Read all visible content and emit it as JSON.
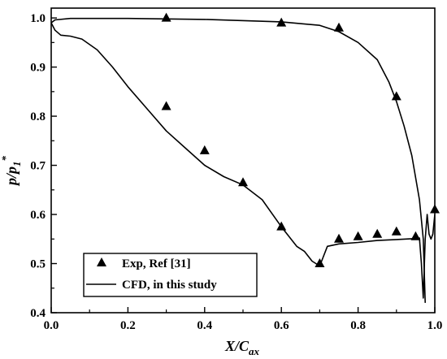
{
  "chart_data": {
    "type": "line",
    "xlabel": {
      "main": "X/C",
      "sub": "ax"
    },
    "ylabel": {
      "main": "p/p",
      "sub": "1",
      "sup": "*"
    },
    "xlim": [
      0.0,
      1.0
    ],
    "ylim": [
      0.4,
      1.02
    ],
    "xticks": [
      "0.0",
      "0.2",
      "0.4",
      "0.6",
      "0.8",
      "1.0"
    ],
    "yticks": [
      "0.4",
      "0.5",
      "0.6",
      "0.7",
      "0.8",
      "0.9",
      "1.0"
    ],
    "grid": false,
    "legend": {
      "placement": "bottom-left",
      "entries": [
        {
          "label": "Exp, Ref [31]",
          "marker": "triangle"
        },
        {
          "label": "CFD, in this study",
          "marker": "line"
        }
      ]
    },
    "series": [
      {
        "kind": "scatter",
        "marker": "triangle",
        "points": [
          [
            0.3,
            1.0
          ],
          [
            0.6,
            0.99
          ],
          [
            0.75,
            0.98
          ],
          [
            0.9,
            0.84
          ],
          [
            0.3,
            0.82
          ],
          [
            0.4,
            0.73
          ],
          [
            0.5,
            0.665
          ],
          [
            0.6,
            0.575
          ],
          [
            0.7,
            0.5
          ],
          [
            0.75,
            0.55
          ],
          [
            0.8,
            0.555
          ],
          [
            0.85,
            0.56
          ],
          [
            0.9,
            0.565
          ],
          [
            0.95,
            0.555
          ],
          [
            1.0,
            0.61
          ]
        ]
      },
      {
        "kind": "line",
        "curves": [
          [
            [
              0.0,
              0.99
            ],
            [
              0.01,
              0.996
            ],
            [
              0.05,
              0.999
            ],
            [
              0.2,
              0.999
            ],
            [
              0.4,
              0.997
            ],
            [
              0.6,
              0.992
            ],
            [
              0.7,
              0.985
            ],
            [
              0.75,
              0.972
            ],
            [
              0.8,
              0.95
            ],
            [
              0.85,
              0.915
            ],
            [
              0.88,
              0.87
            ],
            [
              0.9,
              0.83
            ],
            [
              0.92,
              0.78
            ],
            [
              0.94,
              0.72
            ],
            [
              0.96,
              0.63
            ],
            [
              0.97,
              0.55
            ],
            [
              0.975,
              0.42
            ]
          ],
          [
            [
              0.0,
              0.99
            ],
            [
              0.01,
              0.975
            ],
            [
              0.025,
              0.965
            ],
            [
              0.05,
              0.963
            ],
            [
              0.08,
              0.957
            ],
            [
              0.12,
              0.935
            ],
            [
              0.16,
              0.9
            ],
            [
              0.2,
              0.86
            ],
            [
              0.25,
              0.815
            ],
            [
              0.3,
              0.77
            ],
            [
              0.35,
              0.735
            ],
            [
              0.4,
              0.7
            ],
            [
              0.45,
              0.677
            ],
            [
              0.5,
              0.66
            ],
            [
              0.55,
              0.63
            ],
            [
              0.6,
              0.575
            ],
            [
              0.64,
              0.535
            ],
            [
              0.66,
              0.525
            ],
            [
              0.68,
              0.505
            ],
            [
              0.7,
              0.495
            ],
            [
              0.72,
              0.535
            ],
            [
              0.75,
              0.54
            ],
            [
              0.8,
              0.543
            ],
            [
              0.85,
              0.547
            ],
            [
              0.9,
              0.549
            ],
            [
              0.95,
              0.551
            ],
            [
              0.96,
              0.552
            ],
            [
              0.965,
              0.5
            ],
            [
              0.97,
              0.43
            ],
            [
              0.975,
              0.55
            ],
            [
              0.98,
              0.6
            ],
            [
              0.985,
              0.56
            ],
            [
              0.99,
              0.55
            ],
            [
              0.995,
              0.56
            ],
            [
              1.0,
              0.6
            ]
          ]
        ]
      }
    ]
  }
}
